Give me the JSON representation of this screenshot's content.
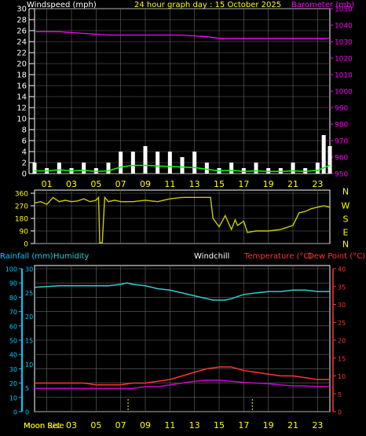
{
  "header": {
    "left_label": "Windspeed (mph)",
    "center_label": "24 hour graph day : 15 October 2025",
    "right_label": "Barometer (mb)"
  },
  "colors": {
    "wind_left_axis": "#ffffff",
    "baro_axis": "#ff00ff",
    "hour_labels": "#ffff00",
    "gust": "#ffffff",
    "avg_wind": "#00ff00",
    "barometer": "#ff00ff",
    "direction": "#cccc00",
    "rain_axis": "#00ccff",
    "humidity": "#33cccc",
    "temperature": "#ff3333",
    "dew_point": "#cc00cc",
    "windchill_label": "#ffffff",
    "moon": "#ffff00",
    "grid": "#666666"
  },
  "chart_data": [
    {
      "type": "line",
      "name": "wind-barometer",
      "y_left": {
        "label": "Windspeed (mph)",
        "ticks": [
          0,
          2,
          4,
          6,
          8,
          10,
          12,
          14,
          16,
          18,
          20,
          22,
          24,
          26,
          28,
          30
        ],
        "range": [
          0,
          30
        ]
      },
      "y_right": {
        "label": "Barometer (mb)",
        "ticks": [
          950,
          960,
          970,
          980,
          990,
          1000,
          1010,
          1020,
          1030,
          1040,
          1050
        ],
        "range": [
          950,
          1050
        ]
      },
      "x_ticks": [
        "01",
        "03",
        "05",
        "07",
        "09",
        "11",
        "13",
        "15",
        "17",
        "19",
        "21",
        "23"
      ],
      "x_range": [
        0,
        24
      ],
      "series": [
        {
          "role": "barometer",
          "x": [
            0,
            2,
            4,
            6,
            8,
            10,
            12,
            14,
            15,
            16,
            18,
            20,
            22,
            24
          ],
          "y": [
            1036,
            1036,
            1035,
            1034,
            1034,
            1034,
            1034,
            1033,
            1032,
            1032,
            1032,
            1032,
            1032,
            1032
          ]
        },
        {
          "role": "gust",
          "x": [
            0,
            1,
            2,
            3,
            4,
            5,
            6,
            7,
            8,
            9,
            10,
            11,
            12,
            13,
            14,
            15,
            16,
            17,
            18,
            19,
            20,
            21,
            22,
            23,
            23.5,
            24
          ],
          "y": [
            2,
            1,
            2,
            1,
            2,
            1,
            2,
            4,
            4,
            5,
            4,
            4,
            3,
            4,
            2,
            1,
            2,
            1,
            2,
            1,
            1,
            2,
            1,
            2,
            7,
            5
          ]
        },
        {
          "role": "average",
          "x": [
            0,
            1,
            2,
            3,
            4,
            5,
            6,
            7,
            8,
            9,
            10,
            11,
            12,
            13,
            14,
            15,
            16,
            17,
            18,
            19,
            20,
            21,
            22,
            23,
            24
          ],
          "y": [
            0.5,
            0.5,
            0.7,
            0.5,
            0.6,
            0.4,
            0.5,
            1.2,
            1.5,
            1.5,
            1.4,
            1.3,
            1.2,
            1.1,
            0.8,
            0.5,
            0.6,
            0.4,
            0.5,
            0.4,
            0.4,
            0.5,
            0.4,
            0.6,
            1.5
          ]
        }
      ]
    },
    {
      "type": "line",
      "name": "wind-direction",
      "y_ticks": [
        "0",
        "90",
        "180",
        "270",
        "360"
      ],
      "y_range": [
        0,
        360
      ],
      "direction_labels": [
        "N",
        "W",
        "S",
        "E",
        "N"
      ],
      "x_range": [
        0,
        24
      ],
      "series": [
        {
          "role": "direction",
          "x": [
            0,
            0.5,
            1,
            1.5,
            2,
            2.5,
            3,
            3.5,
            4,
            4.5,
            5,
            5.2,
            5.3,
            5.5,
            5.7,
            6,
            6.5,
            7,
            8,
            9,
            10,
            11,
            12,
            13,
            14,
            14.3,
            14.5,
            15,
            15.5,
            16,
            16.3,
            16.5,
            17,
            17.3,
            18,
            19,
            20,
            21,
            21.5,
            22,
            22.5,
            23,
            23.5,
            24
          ],
          "y": [
            290,
            300,
            280,
            330,
            300,
            310,
            300,
            305,
            320,
            300,
            310,
            330,
            5,
            5,
            330,
            300,
            310,
            300,
            300,
            310,
            300,
            320,
            330,
            330,
            330,
            330,
            180,
            120,
            200,
            100,
            170,
            130,
            160,
            80,
            90,
            90,
            100,
            130,
            220,
            230,
            250,
            260,
            270,
            260
          ]
        }
      ]
    },
    {
      "type": "line",
      "name": "temperature-humidity",
      "labels": {
        "rain": "Rainfall (mm)",
        "humidity": "Humidity",
        "windchill": "Windchill",
        "temperature": "Temperature (°C)",
        "dew_point": "Dew Point (°C)"
      },
      "y_left_outer": {
        "ticks": [
          0,
          10,
          20,
          30,
          40,
          50,
          60,
          70,
          80,
          90,
          100
        ],
        "range": [
          0,
          100
        ]
      },
      "y_left_inner": {
        "ticks": [
          0,
          5,
          10,
          15,
          20,
          25,
          30
        ],
        "range": [
          0,
          30
        ]
      },
      "y_right": {
        "ticks": [
          0,
          5,
          10,
          15,
          20,
          25,
          30,
          35,
          40
        ],
        "range": [
          0,
          40
        ]
      },
      "x_ticks": [
        "01",
        "03",
        "05",
        "07",
        "09",
        "11",
        "13",
        "15",
        "17",
        "19",
        "21",
        "23"
      ],
      "moon_labels": [
        "Moon Rise",
        "Moon Set"
      ],
      "moon_events_x": [
        7.6,
        17.7
      ],
      "x_range": [
        0,
        24
      ],
      "series": [
        {
          "role": "humidity",
          "x": [
            0,
            2,
            4,
            5,
            6,
            7,
            7.5,
            8,
            9,
            10,
            11,
            12,
            13,
            14,
            14.5,
            15,
            15.5,
            16,
            17,
            18,
            19,
            20,
            21,
            22,
            23,
            24
          ],
          "y": [
            87,
            88,
            88,
            88,
            88,
            89,
            90,
            89,
            88,
            86,
            85,
            83,
            81,
            79,
            78,
            78,
            78,
            79,
            82,
            83,
            84,
            84,
            85,
            85,
            84,
            84
          ]
        },
        {
          "role": "temperature",
          "x": [
            0,
            2,
            4,
            5,
            6,
            7,
            8,
            9,
            10,
            11,
            12,
            13,
            14,
            15,
            16,
            17,
            18,
            19,
            20,
            21,
            22,
            23,
            24
          ],
          "y": [
            8,
            8,
            8,
            7.5,
            7.5,
            7.5,
            8,
            8,
            8.5,
            9,
            10,
            11,
            12,
            12.5,
            12.5,
            11.5,
            11,
            10.5,
            10,
            10,
            9.5,
            9,
            9
          ]
        },
        {
          "role": "dew_point",
          "x": [
            0,
            2,
            4,
            5,
            6,
            7,
            8,
            9,
            10,
            11,
            12,
            13,
            14,
            15,
            16,
            17,
            18,
            19,
            20,
            21,
            22,
            23,
            24
          ],
          "y": [
            6.5,
            6.5,
            6.5,
            6.5,
            6.5,
            6.5,
            6.5,
            7,
            7,
            7.5,
            8,
            8.5,
            8.8,
            8.8,
            8.5,
            8.2,
            8,
            7.8,
            7.5,
            7.2,
            7.2,
            7,
            7
          ]
        }
      ]
    }
  ]
}
